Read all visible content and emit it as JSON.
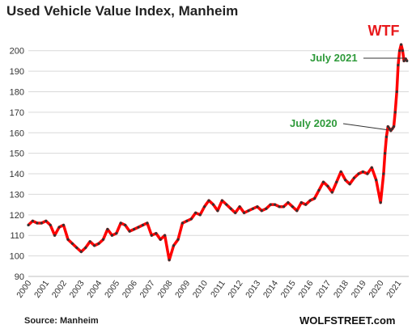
{
  "chart_data": {
    "type": "line",
    "title": "Used Vehicle Value Index, Manheim",
    "source": "Source: Manheim",
    "brand": "WOLFSTREET.com",
    "ylim": [
      90,
      205
    ],
    "yticks": [
      90,
      100,
      110,
      120,
      130,
      140,
      150,
      160,
      170,
      180,
      190,
      200
    ],
    "xlim": [
      2000,
      2021.6
    ],
    "xticks": [
      "2000",
      "2001",
      "2002",
      "2003",
      "2004",
      "2005",
      "2006",
      "2007",
      "2008",
      "2009",
      "2010",
      "2011",
      "2012",
      "2013",
      "2014",
      "2015",
      "2016",
      "2017",
      "2018",
      "2019",
      "2020",
      "2021"
    ],
    "grid": "horizontal",
    "series_color": "#ff0000",
    "marker_color": "#333333",
    "series": [
      {
        "x": [
          2000.0,
          2000.25,
          2000.5,
          2000.75,
          2001.0,
          2001.25,
          2001.5,
          2001.75,
          2002.0,
          2002.25,
          2002.5,
          2002.75,
          2003.0,
          2003.25,
          2003.5,
          2003.75,
          2004.0,
          2004.25,
          2004.5,
          2004.75,
          2005.0,
          2005.25,
          2005.5,
          2005.75,
          2006.0,
          2006.25,
          2006.5,
          2006.75,
          2007.0,
          2007.25,
          2007.5,
          2007.75,
          2008.0,
          2008.25,
          2008.5,
          2008.75,
          2009.0,
          2009.25,
          2009.5,
          2009.75,
          2010.0,
          2010.25,
          2010.5,
          2010.75,
          2011.0,
          2011.25,
          2011.5,
          2011.75,
          2012.0,
          2012.25,
          2012.5,
          2012.75,
          2013.0,
          2013.25,
          2013.5,
          2013.75,
          2014.0,
          2014.25,
          2014.5,
          2014.75,
          2015.0,
          2015.25,
          2015.5,
          2015.75,
          2016.0,
          2016.25,
          2016.5,
          2016.75,
          2017.0,
          2017.25,
          2017.5,
          2017.75,
          2018.0,
          2018.25,
          2018.5,
          2018.75,
          2019.0,
          2019.25,
          2019.5,
          2019.75,
          2020.0,
          2020.17,
          2020.25,
          2020.33,
          2020.42,
          2020.5,
          2020.58,
          2020.67,
          2020.75,
          2020.83,
          2020.92,
          2021.0,
          2021.08,
          2021.17,
          2021.25,
          2021.33,
          2021.42,
          2021.5
        ],
        "y": [
          115,
          117,
          116,
          116,
          117,
          115,
          110,
          114,
          115,
          108,
          106,
          104,
          102,
          104,
          107,
          105,
          106,
          108,
          113,
          110,
          111,
          116,
          115,
          112,
          113,
          114,
          115,
          116,
          110,
          111,
          108,
          110,
          98,
          105,
          108,
          116,
          117,
          118,
          121,
          120,
          124,
          127,
          125,
          122,
          127,
          125,
          123,
          121,
          124,
          121,
          122,
          123,
          124,
          122,
          123,
          125,
          125,
          124,
          124,
          126,
          124,
          122,
          126,
          125,
          127,
          128,
          132,
          136,
          134,
          131,
          136,
          141,
          137,
          135,
          138,
          140,
          141,
          140,
          143,
          137,
          126,
          140,
          150,
          158,
          163,
          162,
          161,
          162,
          163,
          170,
          180,
          193,
          200,
          203,
          200,
          195,
          196,
          195
        ]
      }
    ],
    "annotations": [
      {
        "text": "WTF",
        "color": "#e8191c"
      },
      {
        "text": "July 2021",
        "color": "#2e9a3a"
      },
      {
        "text": "July 2020",
        "color": "#2e9a3a"
      }
    ]
  }
}
